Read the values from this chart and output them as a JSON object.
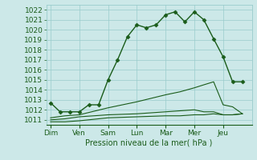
{
  "xlabel": "Pression niveau de la mer( hPa )",
  "background_color": "#cce8e8",
  "grid_color": "#99cccc",
  "line_color": "#1a5c1a",
  "x_labels": [
    "Dim",
    "Ven",
    "Sam",
    "Lun",
    "Mar",
    "Mer",
    "Jeu"
  ],
  "ylim": [
    1010.5,
    1022.5
  ],
  "yticks": [
    1011,
    1012,
    1013,
    1014,
    1015,
    1016,
    1017,
    1018,
    1019,
    1020,
    1021,
    1022
  ],
  "series_main": {
    "x": [
      0.0,
      0.33,
      0.67,
      1.0,
      1.33,
      1.67,
      2.0,
      2.33,
      2.67,
      3.0,
      3.33,
      3.67,
      4.0,
      4.33,
      4.67,
      5.0,
      5.33,
      5.67,
      6.0,
      6.33,
      6.67
    ],
    "y": [
      1012.7,
      1011.8,
      1011.8,
      1011.8,
      1012.5,
      1012.5,
      1015.0,
      1017.0,
      1019.3,
      1020.5,
      1020.2,
      1020.5,
      1021.5,
      1021.8,
      1020.8,
      1021.8,
      1021.0,
      1019.1,
      1017.3,
      1014.8,
      1014.8
    ],
    "marker": "D",
    "markersize": 2.5,
    "linewidth": 1.0
  },
  "series_flat": [
    {
      "x": [
        0.0,
        0.5,
        1.0,
        2.0,
        3.0,
        4.0,
        4.5,
        5.0,
        5.33,
        5.67,
        6.0,
        6.33,
        6.67
      ],
      "y": [
        1010.8,
        1010.8,
        1010.9,
        1011.2,
        1011.3,
        1011.4,
        1011.4,
        1011.5,
        1011.5,
        1011.6,
        1011.5,
        1011.5,
        1011.6
      ],
      "linewidth": 0.8
    },
    {
      "x": [
        0.0,
        0.5,
        1.0,
        2.0,
        3.0,
        4.0,
        4.5,
        5.0,
        5.33,
        5.67,
        6.0,
        6.33,
        6.67
      ],
      "y": [
        1011.0,
        1011.1,
        1011.3,
        1011.5,
        1011.6,
        1011.8,
        1011.9,
        1012.0,
        1011.8,
        1011.8,
        1011.5,
        1011.5,
        1011.6
      ],
      "linewidth": 0.8
    },
    {
      "x": [
        0.0,
        0.5,
        1.0,
        2.0,
        3.0,
        4.0,
        4.5,
        5.0,
        5.33,
        5.67,
        6.0,
        6.33,
        6.67
      ],
      "y": [
        1011.2,
        1011.4,
        1011.5,
        1012.2,
        1012.8,
        1013.5,
        1013.8,
        1014.2,
        1014.5,
        1014.8,
        1012.5,
        1012.3,
        1011.6
      ],
      "linewidth": 0.8
    }
  ],
  "font_color": "#1a5c1a",
  "font_size": 6.5,
  "xlabel_fontsize": 7.0
}
